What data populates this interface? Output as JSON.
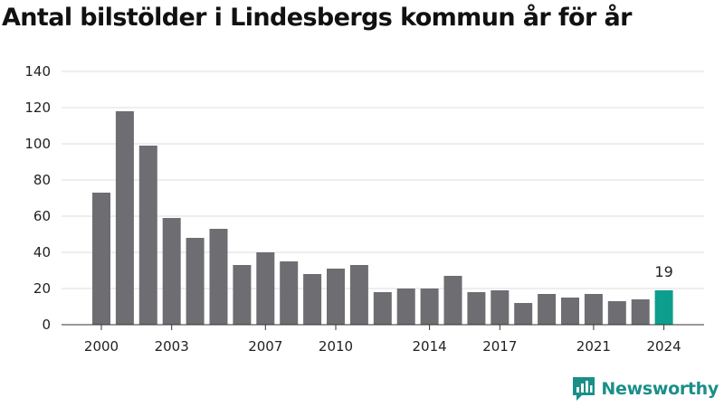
{
  "title": "Antal bilstölder i Lindesbergs kommun år för år",
  "logo_text": "Newsworthy",
  "colors": {
    "bar": "#6e6d72",
    "highlight": "#0d9e8e",
    "grid": "#dddddd",
    "axis": "#333333",
    "brand": "#1a8f88"
  },
  "chart_data": {
    "type": "bar",
    "title": "Antal bilstölder i Lindesbergs kommun år för år",
    "xlabel": "",
    "ylabel": "",
    "categories": [
      "2000",
      "2001",
      "2002",
      "2003",
      "2004",
      "2005",
      "2006",
      "2007",
      "2008",
      "2009",
      "2010",
      "2011",
      "2012",
      "2013",
      "2014",
      "2015",
      "2016",
      "2017",
      "2018",
      "2019",
      "2020",
      "2021",
      "2022",
      "2023",
      "2024"
    ],
    "values": [
      73,
      118,
      99,
      59,
      48,
      53,
      33,
      40,
      35,
      28,
      31,
      33,
      18,
      20,
      20,
      27,
      18,
      19,
      12,
      17,
      15,
      17,
      13,
      14,
      19
    ],
    "x_tick_labels": [
      "2000",
      "2003",
      "2007",
      "2010",
      "2014",
      "2017",
      "2021",
      "2024"
    ],
    "y_ticks": [
      0,
      20,
      40,
      60,
      80,
      100,
      120,
      140
    ],
    "ylim": [
      0,
      140
    ],
    "highlight_category": "2024",
    "data_labels": [
      {
        "category": "2024",
        "text": "19"
      }
    ],
    "grid": true
  }
}
